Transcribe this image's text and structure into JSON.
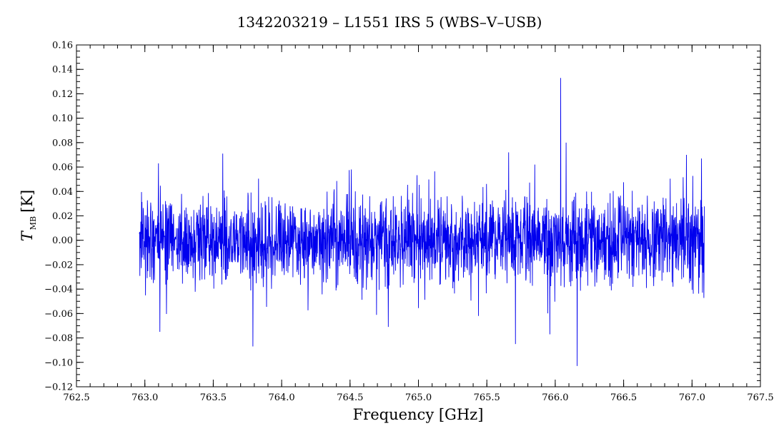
{
  "chart_data": {
    "type": "line",
    "title": "1342203219 – L1551 IRS 5 (WBS–V–USB)",
    "xlabel": "Frequency [GHz]",
    "ylabel": {
      "symbol": "T",
      "subscript": "MB",
      "unit": "[K]"
    },
    "xlim": [
      762.5,
      767.5
    ],
    "ylim": [
      -0.12,
      0.16
    ],
    "x_ticks": [
      "762.5",
      "763.0",
      "763.5",
      "764.0",
      "764.5",
      "765.0",
      "765.5",
      "766.0",
      "766.5",
      "767.0",
      "767.5"
    ],
    "y_ticks": [
      "−0.12",
      "−0.10",
      "−0.08",
      "−0.06",
      "−0.04",
      "−0.02",
      "0.00",
      "0.02",
      "0.04",
      "0.06",
      "0.08",
      "0.10",
      "0.12",
      "0.14",
      "0.16"
    ],
    "grid": false,
    "legend": "none",
    "line_color": "#0000ee",
    "series": [
      {
        "x_range": [
          762.96,
          767.09
        ],
        "noise_rms": 0.025,
        "notable_points": [
          {
            "x": 766.04,
            "y": 0.133
          },
          {
            "x": 766.08,
            "y": 0.08
          },
          {
            "x": 766.16,
            "y": -0.103
          },
          {
            "x": 763.79,
            "y": -0.087
          },
          {
            "x": 765.71,
            "y": -0.085
          },
          {
            "x": 765.96,
            "y": -0.077
          },
          {
            "x": 763.11,
            "y": -0.075
          },
          {
            "x": 764.78,
            "y": -0.071
          },
          {
            "x": 765.66,
            "y": 0.072
          },
          {
            "x": 763.57,
            "y": 0.071
          },
          {
            "x": 766.96,
            "y": 0.07
          },
          {
            "x": 767.07,
            "y": 0.067
          },
          {
            "x": 763.1,
            "y": 0.063
          },
          {
            "x": 765.85,
            "y": 0.062
          }
        ]
      }
    ]
  }
}
